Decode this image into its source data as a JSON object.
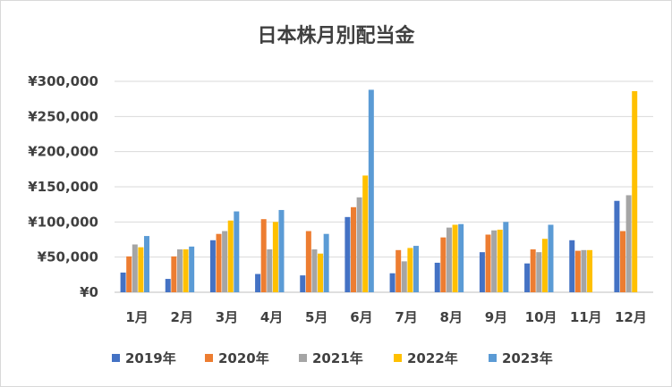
{
  "chart_data": {
    "type": "bar",
    "title": "日本株月別配当金",
    "categories": [
      "1月",
      "2月",
      "3月",
      "4月",
      "5月",
      "6月",
      "7月",
      "8月",
      "9月",
      "10月",
      "11月",
      "12月"
    ],
    "yticks": [
      "¥0",
      "¥50,000",
      "¥100,000",
      "¥150,000",
      "¥200,000",
      "¥250,000",
      "¥300,000"
    ],
    "ylim": [
      0,
      300000
    ],
    "grid": true,
    "legend_position": "bottom",
    "series": [
      {
        "name": "2019年",
        "color": "#4472c4",
        "values": [
          28000,
          19000,
          74000,
          26000,
          24000,
          107000,
          27000,
          42000,
          57000,
          41000,
          74000,
          130000
        ]
      },
      {
        "name": "2020年",
        "color": "#ed7d31",
        "values": [
          51000,
          51000,
          83000,
          104000,
          87000,
          121000,
          60000,
          78000,
          82000,
          61000,
          59000,
          87000
        ]
      },
      {
        "name": "2021年",
        "color": "#a5a5a5",
        "values": [
          68000,
          61000,
          87000,
          61000,
          61000,
          135000,
          44000,
          92000,
          88000,
          57000,
          60000,
          138000
        ]
      },
      {
        "name": "2022年",
        "color": "#ffc000",
        "values": [
          64000,
          61000,
          102000,
          100000,
          55000,
          166000,
          63000,
          96000,
          89000,
          76000,
          60000,
          286000
        ]
      },
      {
        "name": "2023年",
        "color": "#5b9bd5",
        "values": [
          80000,
          65000,
          115000,
          117000,
          83000,
          288000,
          66000,
          97000,
          100000,
          96000,
          null,
          null
        ]
      }
    ]
  }
}
